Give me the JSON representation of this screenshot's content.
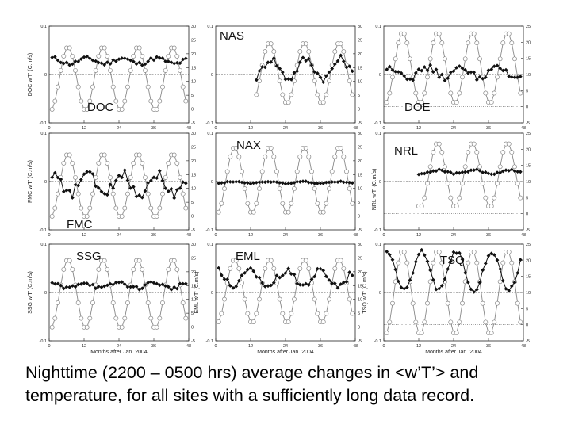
{
  "caption": "Nighttime (2200 – 0500 hrs) average changes in <w’T’> and temperature, for all sites with a sufficiently long data record.",
  "x_axis_label": "Months after Jan. 2004",
  "colors": {
    "flux_series": "#111111",
    "temp_series": "#888888",
    "zero_line": "#333333",
    "axis": "#222222"
  },
  "chart_data": [
    {
      "type": "line",
      "site": "DOC",
      "label": "DOC",
      "ylabel_left": "DOC w'T' (C.m/s)",
      "ylabel_right": "",
      "ylim_left": [
        -0.1,
        0.1
      ],
      "yticks_left": [
        "0.1",
        "0",
        "-0.1"
      ],
      "ylim_right": [
        -5,
        30
      ],
      "yticks_right": [
        "30",
        "25",
        "20",
        "15",
        "10",
        "5",
        "0",
        "-5"
      ],
      "xlim": [
        0,
        48
      ],
      "xticks": [
        "0",
        "12",
        "24",
        "36",
        "48"
      ],
      "xlabel": "",
      "x_start": 1,
      "x_end": 47,
      "flux": {
        "name": "w'T'",
        "base": 0.028,
        "amp": 0.006,
        "phase_month": 1,
        "noise": 0.004
      },
      "temperature": {
        "name": "Temperature",
        "mean": 11,
        "amp": 11.5,
        "peak_month": 6.5
      }
    },
    {
      "type": "line",
      "site": "NAS",
      "label": "NAS",
      "ylabel_left": "",
      "ylabel_right": "",
      "ylim_left": [
        -0.1,
        0.1
      ],
      "yticks_left": [
        "0.1",
        "0",
        "-0.1"
      ],
      "ylim_right": [
        -5,
        30
      ],
      "yticks_right": [
        "30",
        "25",
        "20",
        "15",
        "10",
        "5",
        "0",
        "-5"
      ],
      "xlim": [
        0,
        48
      ],
      "xticks": [
        "0",
        "12",
        "24",
        "36",
        "48"
      ],
      "xlabel": "",
      "x_start": 14,
      "x_end": 47,
      "flux": {
        "name": "w'T'",
        "base": 0.012,
        "amp": 0.02,
        "phase_month": 7,
        "noise": 0.008
      },
      "temperature": {
        "name": "Temperature",
        "mean": 13,
        "amp": 11,
        "peak_month": 6.5
      }
    },
    {
      "type": "line",
      "site": "DOE",
      "label": "DOE",
      "ylabel_left": "",
      "ylabel_right": "",
      "ylim_left": [
        -0.1,
        0.1
      ],
      "yticks_left": [
        "0.1",
        "0",
        "-0.1"
      ],
      "ylim_right": [
        -5,
        25
      ],
      "yticks_right": [
        "25",
        "20",
        "15",
        "10",
        "5",
        "0",
        "-5"
      ],
      "xlim": [
        0,
        48
      ],
      "xticks": [
        "0",
        "12",
        "24",
        "36",
        "48"
      ],
      "xlabel": "",
      "x_start": 1,
      "x_end": 47,
      "flux": {
        "name": "w'T'",
        "base": 0.004,
        "amp": 0.01,
        "phase_month": 3,
        "noise": 0.007
      },
      "temperature": {
        "name": "Temperature",
        "mean": 12,
        "amp": 11,
        "peak_month": 6.5
      }
    },
    {
      "type": "line",
      "site": "FMC",
      "label": "FMC",
      "ylabel_left": "FMC w'T' (C.m/s)",
      "ylabel_right": "",
      "ylim_left": [
        -0.1,
        0.1
      ],
      "yticks_left": [
        "0.1",
        "0",
        "-0.1"
      ],
      "ylim_right": [
        -5,
        30
      ],
      "yticks_right": [
        "30",
        "25",
        "20",
        "15",
        "10",
        "5",
        "0",
        "-5"
      ],
      "xlim": [
        0,
        48
      ],
      "xticks": [
        "0",
        "12",
        "24",
        "36",
        "48"
      ],
      "xlabel": "",
      "x_start": 1,
      "x_end": 47,
      "flux": {
        "name": "w'T'",
        "base": -0.005,
        "amp": 0.022,
        "phase_month": 1,
        "noise": 0.01
      },
      "temperature": {
        "name": "Temperature",
        "mean": 11,
        "amp": 11.5,
        "peak_month": 6.5
      }
    },
    {
      "type": "line",
      "site": "NAX",
      "label": "NAX",
      "ylabel_left": "",
      "ylabel_right": "",
      "ylim_left": [
        -0.1,
        0.1
      ],
      "yticks_left": [
        "0.1",
        "0",
        "-0.1"
      ],
      "ylim_right": [
        -5,
        30
      ],
      "yticks_right": [
        "30",
        "25",
        "20",
        "15",
        "10",
        "5",
        "0",
        "-5"
      ],
      "xlim": [
        0,
        48
      ],
      "xticks": [
        "0",
        "12",
        "24",
        "36",
        "48"
      ],
      "xlabel": "",
      "x_start": 1,
      "x_end": 47,
      "flux": {
        "name": "w'T'",
        "base": -0.002,
        "amp": 0.002,
        "phase_month": 6,
        "noise": 0.001
      },
      "temperature": {
        "name": "Temperature",
        "mean": 13,
        "amp": 12,
        "peak_month": 6.5
      }
    },
    {
      "type": "line",
      "site": "NRL",
      "label": "NRL",
      "ylabel_left": "",
      "ylabel_right": "NRL w'T' (C.m/s)",
      "ylim_left": [
        -0.1,
        0.1
      ],
      "yticks_left": [
        "0.1",
        "0",
        "-0.1"
      ],
      "ylim_right": [
        -5,
        25
      ],
      "yticks_right": [
        "25",
        "20",
        "15",
        "10",
        "5",
        "0",
        "-5"
      ],
      "xlim": [
        0,
        48
      ],
      "xticks": [
        "0",
        "12",
        "24",
        "36",
        "48"
      ],
      "xlabel": "",
      "x_start": 12,
      "x_end": 47,
      "flux": {
        "name": "w'T'",
        "base": 0.02,
        "amp": 0.004,
        "phase_month": 7,
        "noise": 0.002
      },
      "temperature": {
        "name": "Temperature",
        "mean": 12,
        "amp": 10,
        "peak_month": 6.5
      }
    },
    {
      "type": "line",
      "site": "SSG",
      "label": "SSG",
      "ylabel_left": "SSG w'T' (C.m/s)",
      "ylabel_right": "",
      "ylim_left": [
        -0.1,
        0.1
      ],
      "yticks_left": [
        "0.1",
        "0",
        "-0.1"
      ],
      "ylim_right": [
        -5,
        30
      ],
      "yticks_right": [
        "30",
        "25",
        "20",
        "15",
        "10",
        "5",
        "0",
        "-5"
      ],
      "xlim": [
        0,
        48
      ],
      "xticks": [
        "0",
        "12",
        "24",
        "36",
        "48"
      ],
      "xlabel": "Months after Jan. 2004",
      "x_start": 1,
      "x_end": 47,
      "flux": {
        "name": "w'T'",
        "base": 0.015,
        "amp": 0.006,
        "phase_month": 0,
        "noise": 0.004
      },
      "temperature": {
        "name": "Temperature",
        "mean": 12,
        "amp": 12.5,
        "peak_month": 6.5
      }
    },
    {
      "type": "line",
      "site": "EML",
      "label": "EML",
      "ylabel_left": "EML w'T' (C.m/s)",
      "ylabel_right": "",
      "ylim_left": [
        -0.1,
        0.1
      ],
      "yticks_left": [
        "0.1",
        "0",
        "-0.1"
      ],
      "ylim_right": [
        -5,
        30
      ],
      "yticks_right": [
        "30",
        "25",
        "20",
        "15",
        "10",
        "5",
        "0",
        "-5"
      ],
      "xlim": [
        0,
        48
      ],
      "xticks": [
        "0",
        "12",
        "24",
        "36",
        "48"
      ],
      "xlabel": "Months after Jan. 2004",
      "x_start": 1,
      "x_end": 47,
      "flux": {
        "name": "w'T'",
        "base": 0.03,
        "amp": 0.015,
        "phase_month": 0,
        "noise": 0.008
      },
      "temperature": {
        "name": "Temperature",
        "mean": 13,
        "amp": 11.5,
        "peak_month": 6.5
      }
    },
    {
      "type": "line",
      "site": "TSQ",
      "label": "TSQ",
      "ylabel_left": "TSQ w'T' (C.m/s)",
      "ylabel_right": "",
      "ylim_left": [
        -0.1,
        0.1
      ],
      "yticks_left": [
        "0.1",
        "0",
        "-0.1"
      ],
      "ylim_right": [
        -5,
        25
      ],
      "yticks_right": [
        "25",
        "20",
        "15",
        "10",
        "5",
        "0",
        "-5"
      ],
      "xlim": [
        0,
        48
      ],
      "xticks": [
        "0",
        "12",
        "24",
        "36",
        "48"
      ],
      "xlabel": "Months after Jan. 2004",
      "x_start": 1,
      "x_end": 47,
      "flux": {
        "name": "w'T'",
        "base": 0.045,
        "amp": 0.04,
        "phase_month": 1,
        "noise": 0.005
      },
      "temperature": {
        "name": "Temperature",
        "mean": 10,
        "amp": 13,
        "peak_month": 6.5
      }
    }
  ]
}
